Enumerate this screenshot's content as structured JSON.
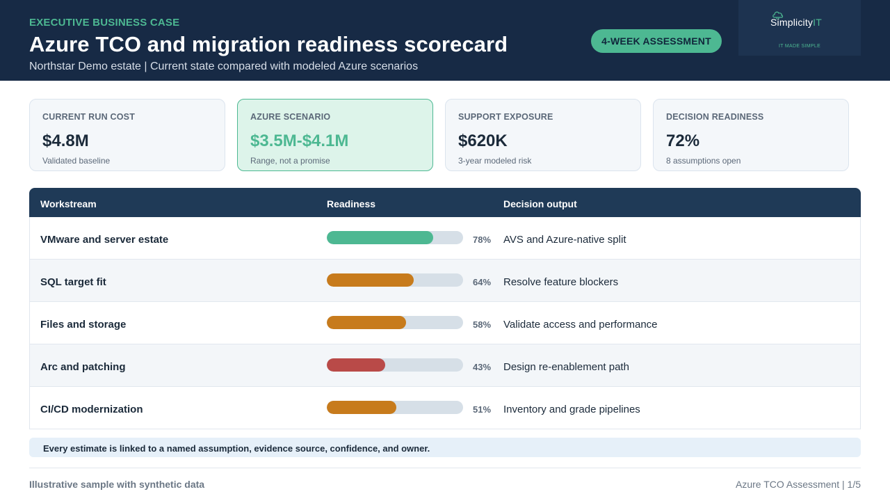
{
  "header": {
    "eyebrow": "EXECUTIVE BUSINESS CASE",
    "title": "Azure TCO and migration readiness scorecard",
    "subtitle": "Northstar Demo estate | Current state compared with modeled Azure scenarios",
    "badge": "4-WEEK ASSESSMENT",
    "logo": {
      "name_main": "Simplicity",
      "name_accent": "IT",
      "tagline": "IT MADE SIMPLE"
    }
  },
  "kpis": [
    {
      "label": "CURRENT RUN COST",
      "value": "$4.8M",
      "note": "Validated baseline"
    },
    {
      "label": "AZURE SCENARIO",
      "value": "$3.5M-$4.1M",
      "note": "Range, not a promise"
    },
    {
      "label": "SUPPORT EXPOSURE",
      "value": "$620K",
      "note": "3-year modeled risk"
    },
    {
      "label": "DECISION READINESS",
      "value": "72%",
      "note": "8 assumptions open"
    }
  ],
  "table": {
    "headers": {
      "workstream": "Workstream",
      "readiness": "Readiness",
      "output": "Decision output"
    },
    "rows": [
      {
        "name": "VMware and server estate",
        "readiness": 78,
        "pct": "78%",
        "output": "AVS and Azure-native split",
        "color": "#4db892"
      },
      {
        "name": "SQL target fit",
        "readiness": 64,
        "pct": "64%",
        "output": "Resolve feature blockers",
        "color": "#c77b1c"
      },
      {
        "name": "Files and storage",
        "readiness": 58,
        "pct": "58%",
        "output": "Validate access and performance",
        "color": "#c77b1c"
      },
      {
        "name": "Arc and patching",
        "readiness": 43,
        "pct": "43%",
        "output": "Design re-enablement path",
        "color": "#b94a48"
      },
      {
        "name": "CI/CD modernization",
        "readiness": 51,
        "pct": "51%",
        "output": "Inventory and grade pipelines",
        "color": "#c77b1c"
      }
    ]
  },
  "note": "Every estimate is linked to a named assumption, evidence source, confidence, and owner.",
  "footer": {
    "left": "Illustrative sample with synthetic data",
    "right": "Azure TCO Assessment | 1/5"
  }
}
